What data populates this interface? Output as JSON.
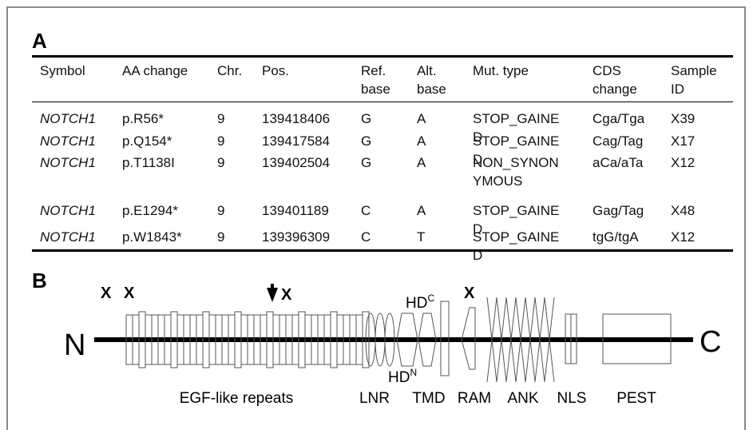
{
  "panel_a": {
    "label": "A",
    "table": {
      "header": [
        "Symbol",
        "AA change",
        "Chr.",
        "Pos.",
        "Ref. base",
        "Alt. base",
        "Mut. type",
        "CDS change",
        "Sample ID"
      ],
      "rows": [
        [
          "NOTCH1",
          "p.R56*",
          "9",
          "139418406",
          "G",
          "A",
          "STOP_GAINED",
          "Cga/Tga",
          "X39"
        ],
        [
          "NOTCH1",
          "p.Q154*",
          "9",
          "139417584",
          "G",
          "A",
          "STOP_GAINED",
          "Cag/Tag",
          "X17"
        ],
        [
          "NOTCH1",
          "p.T1138I",
          "9",
          "139402504",
          "G",
          "A",
          "NON_SYNONYMOUS",
          "aCa/aTa",
          "X12"
        ],
        [
          "NOTCH1",
          "p.E1294*",
          "9",
          "139401189",
          "C",
          "A",
          "STOP_GAINED",
          "Gag/Tag",
          "X48"
        ],
        [
          "NOTCH1",
          "p.W1843*",
          "9",
          "139396309",
          "C",
          "T",
          "STOP_GAINED",
          "tgG/tgA",
          "X12"
        ]
      ]
    }
  },
  "panel_b": {
    "label": "B",
    "n_terminus": "N",
    "c_terminus": "C",
    "mutation_marks": [
      "X",
      "X",
      "X",
      "X"
    ],
    "hd_c": {
      "text": "HD",
      "sup": "C"
    },
    "hd_n": {
      "text": "HD",
      "sup": "N"
    },
    "domains": [
      "EGF-like repeats",
      "LNR",
      "TMD",
      "RAM",
      "ANK",
      "NLS",
      "PEST"
    ]
  }
}
